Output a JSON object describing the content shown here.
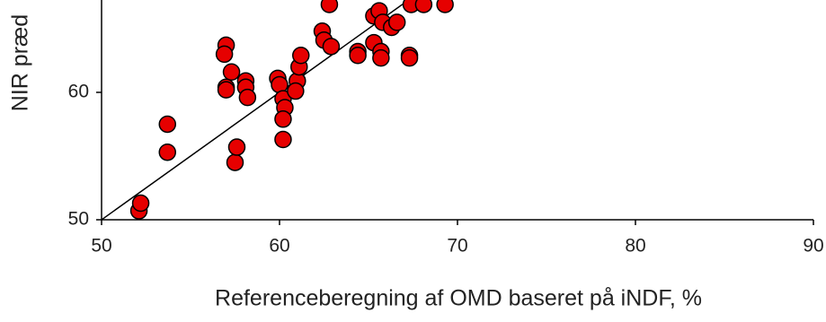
{
  "chart_data": {
    "type": "scatter",
    "x_label": "Referenceberegning af OMD baseret på iNDF, %",
    "y_label": "NIR præd",
    "x": [
      52.1,
      52.2,
      53.7,
      53.7,
      57.5,
      57.6,
      57.0,
      56.9,
      57.3,
      57.0,
      57.0,
      58.1,
      58.1,
      58.2,
      59.9,
      60.0,
      60.2,
      60.3,
      60.2,
      60.2,
      61.0,
      60.9,
      61.1,
      61.2,
      62.4,
      62.5,
      62.9,
      62.8,
      64.4,
      64.4,
      65.3,
      65.7,
      65.7,
      65.3,
      65.6,
      65.8,
      66.3,
      66.6,
      67.4,
      67.3,
      67.3,
      68.1,
      69.3
    ],
    "values": [
      50.7,
      51.3,
      55.3,
      57.5,
      54.5,
      55.7,
      63.7,
      63.0,
      61.6,
      60.4,
      60.2,
      60.9,
      60.4,
      59.6,
      61.1,
      60.6,
      59.5,
      58.8,
      57.9,
      56.3,
      60.9,
      60.1,
      62.0,
      62.9,
      64.8,
      64.1,
      63.6,
      66.9,
      63.2,
      62.9,
      63.9,
      63.2,
      62.7,
      66.0,
      66.4,
      65.5,
      65.1,
      65.5,
      66.9,
      62.9,
      62.7,
      66.9,
      66.9
    ],
    "color": "#e60000",
    "xlim": [
      50,
      90
    ],
    "xticks": [
      50,
      60,
      70,
      80,
      90
    ],
    "ylim": [
      50,
      67.25
    ],
    "yticks": [
      50,
      60
    ]
  }
}
